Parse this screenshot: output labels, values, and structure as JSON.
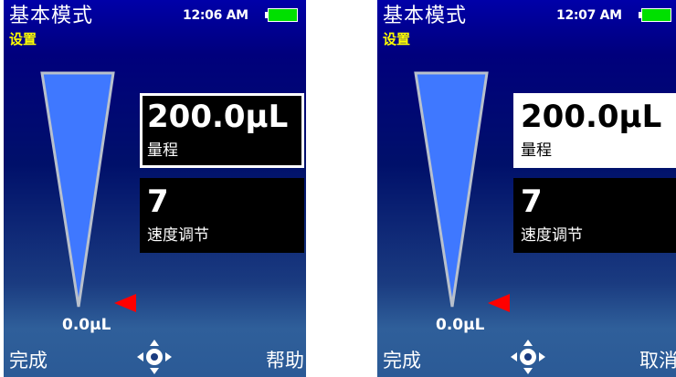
{
  "screens": [
    {
      "mode_title": "基本模式",
      "subtitle": "设置",
      "time": "12:06 AM",
      "range": {
        "value": "200.0µL",
        "label": "量程"
      },
      "speed": {
        "value": "7",
        "label": "速度调节"
      },
      "current_volume": "0.0µL",
      "softkeys": {
        "left": "完成",
        "right": "帮助"
      },
      "selected_field": "range"
    },
    {
      "mode_title": "基本模式",
      "subtitle": "设置",
      "time": "12:07 AM",
      "range": {
        "value": "200.0µL",
        "label": "量程"
      },
      "speed": {
        "value": "7",
        "label": "速度调节"
      },
      "current_volume": "0.0µL",
      "softkeys": {
        "left": "完成",
        "right": "取消"
      },
      "selected_field": "range"
    }
  ],
  "icons": {
    "battery": "battery-full-icon",
    "navigation": "dpad-icon",
    "pointer": "volume-pointer-icon"
  },
  "colors": {
    "title": "#ffffff",
    "subtitle": "#ffff00",
    "gauge_fill": "#3f78ff",
    "battery": "#00e000",
    "pointer": "#ff0000"
  }
}
